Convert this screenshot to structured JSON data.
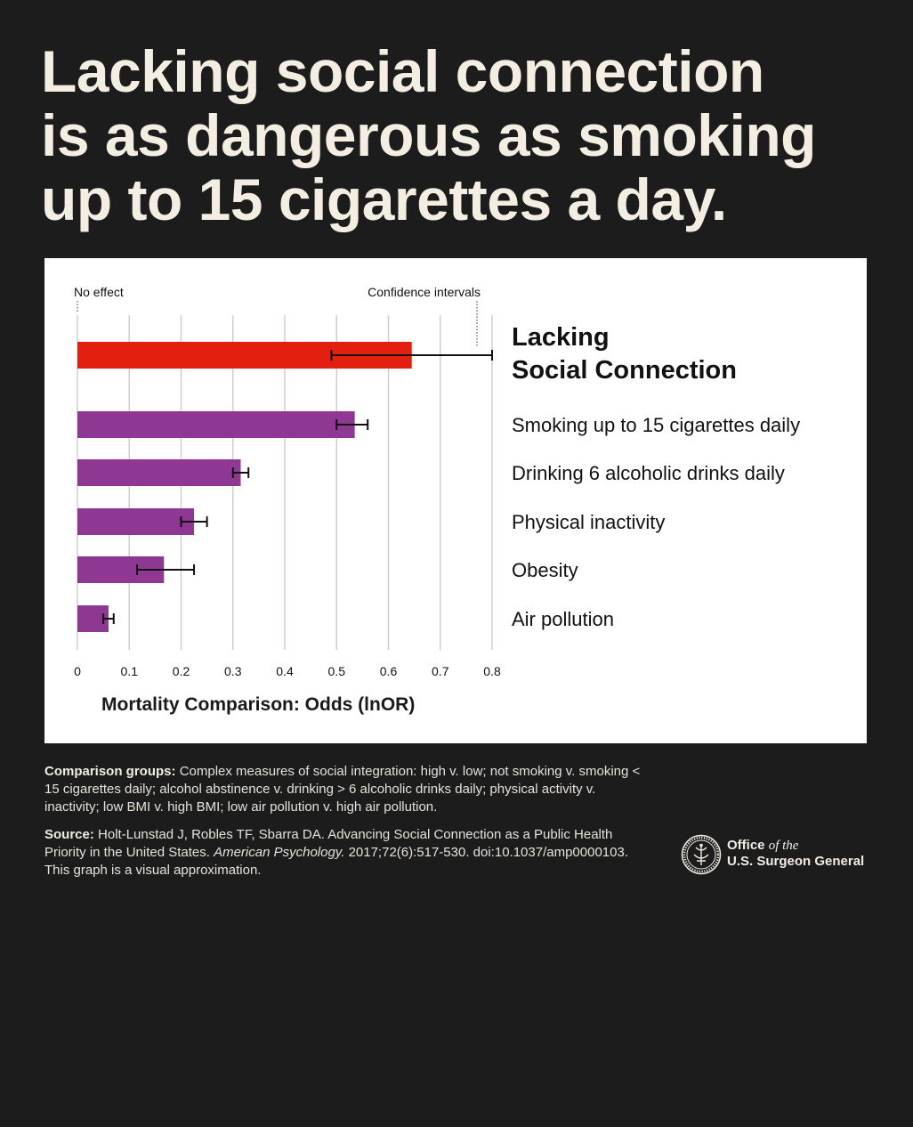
{
  "headline": {
    "line1": "Lacking social connection",
    "line2": "is as dangerous as smoking",
    "line3": "up to 15 cigarettes a day."
  },
  "chart_data": {
    "type": "bar",
    "orientation": "horizontal",
    "xlabel": "Mortality Comparison: Odds (lnOR)",
    "xlim": [
      0,
      0.8
    ],
    "xticks": [
      "0",
      "0.1",
      "0.2",
      "0.3",
      "0.4",
      "0.5",
      "0.6",
      "0.7",
      "0.8"
    ],
    "grid": true,
    "annotations": {
      "no_effect": "No effect",
      "confidence_intervals": "Confidence intervals"
    },
    "categories": [
      "Lacking Social Connection",
      "Smoking up to 15 cigarettes daily",
      "Drinking 6 alcoholic drinks daily",
      "Physical inactivity",
      "Obesity",
      "Air pollution"
    ],
    "category_lines": [
      [
        "Lacking",
        "Social Connection"
      ],
      [
        "Smoking up to 15 cigarettes daily"
      ],
      [
        "Drinking 6 alcoholic drinks daily"
      ],
      [
        "Physical inactivity"
      ],
      [
        "Obesity"
      ],
      [
        "Air pollution"
      ]
    ],
    "values": [
      0.645,
      0.535,
      0.315,
      0.225,
      0.167,
      0.06
    ],
    "ci_low": [
      0.49,
      0.5,
      0.3,
      0.2,
      0.115,
      0.05
    ],
    "ci_high": [
      0.8,
      0.56,
      0.33,
      0.25,
      0.225,
      0.07
    ],
    "colors": [
      "#e3200f",
      "#8e3894",
      "#8e3894",
      "#8e3894",
      "#8e3894",
      "#8e3894"
    ]
  },
  "notes": {
    "comparison_label": "Comparison groups:",
    "comparison_text": "Complex measures of social integration: high v. low; not smoking v. smoking < 15 cigarettes daily; alcohol abstinence v. drinking > 6 alcoholic drinks daily; physical activity v. inactivity; low BMI v. high BMI; low air pollution v. high air pollution.",
    "source_label": "Source:",
    "source_text_1": "Holt-Lunstad J, Robles TF, Sbarra DA. Advancing Social Connection as a Public Health Priority in the United States.",
    "source_journal": "American Psychology.",
    "source_text_2": "2017;72(6):517-530. doi:10.1037/amp0000103. This graph is a visual approximation."
  },
  "logo": {
    "office": "Office",
    "of_the": "of the",
    "name": "U.S. Surgeon General",
    "icon": "seal-icon"
  }
}
